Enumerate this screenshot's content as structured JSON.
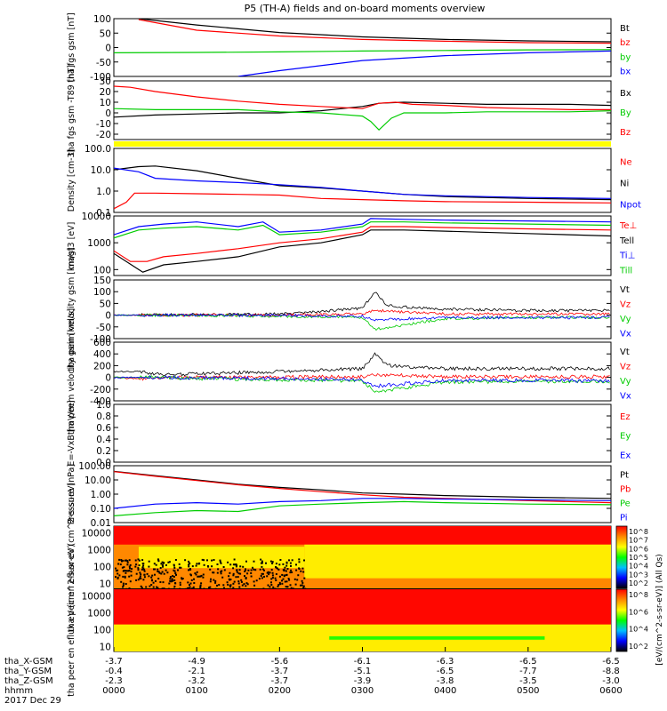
{
  "title": "P5 (TH-A) fields and on-board moments overview",
  "date": "2017 Dec 29",
  "x_axis": {
    "row_labels": [
      "tha_X-GSM",
      "tha_Y-GSM",
      "tha_Z-GSM",
      "hhmm"
    ],
    "tick_hours": [
      0,
      1,
      2,
      3,
      4,
      5,
      6
    ],
    "hhmm": [
      "0000",
      "0100",
      "0200",
      "0300",
      "0400",
      "0500",
      "0600"
    ],
    "x_gsm": [
      "-3.7",
      "-4.9",
      "-5.6",
      "-6.1",
      "-6.3",
      "-6.5",
      "-6.5"
    ],
    "y_gsm": [
      "-0.4",
      "-2.1",
      "-3.7",
      "-5.1",
      "-6.5",
      "-7.7",
      "-8.8"
    ],
    "z_gsm": [
      "-2.3",
      "-3.2",
      "-3.7",
      "-3.9",
      "-3.8",
      "-3.5",
      "-3.0"
    ]
  },
  "colorbar": {
    "label": "[eV/(cm^2-s-sr-eV)] (All Qs)",
    "ticks_top": [
      "10^8",
      "10^7",
      "10^6",
      "10^5",
      "10^4",
      "10^3",
      "10^2"
    ],
    "ticks_bottom": [
      "10^8",
      "10^6",
      "10^4",
      "10^2"
    ],
    "colors": [
      "#ff0000",
      "#ff8800",
      "#ffff00",
      "#00ff00",
      "#00c0ff",
      "#0000ff",
      "#000000"
    ]
  },
  "chart_data": [
    {
      "type": "line",
      "id": "bfield",
      "ylabel": "tha fgs gsm [nT]",
      "ylim": [
        -100,
        100
      ],
      "scale": "linear",
      "ticks": [
        100,
        50,
        0,
        -50,
        -100
      ],
      "series": [
        {
          "name": "Bt",
          "color": "#000000",
          "x": [
            0.3,
            1,
            2,
            3,
            4,
            5,
            6
          ],
          "y": [
            100,
            78,
            52,
            37,
            28,
            23,
            20
          ]
        },
        {
          "name": "bz",
          "color": "#ff0000",
          "x": [
            0.3,
            1,
            2,
            3,
            4,
            5,
            6
          ],
          "y": [
            97,
            60,
            40,
            28,
            22,
            17,
            15
          ]
        },
        {
          "name": "by",
          "color": "#00cc00",
          "x": [
            0,
            1,
            2,
            3,
            4,
            5,
            6
          ],
          "y": [
            -18,
            -17,
            -15,
            -12,
            -10,
            -8,
            -7
          ]
        },
        {
          "name": "bx",
          "color": "#0000ff",
          "x": [
            1.5,
            2,
            3,
            4,
            5,
            6
          ],
          "y": [
            -100,
            -80,
            -45,
            -28,
            -18,
            -12
          ]
        }
      ]
    },
    {
      "type": "line",
      "id": "dbfield",
      "ylabel": "tha fgs gsm -T89 [nT]",
      "ylim": [
        -25,
        30
      ],
      "scale": "linear",
      "ticks": [
        30,
        20,
        10,
        0,
        -10,
        -20
      ],
      "series": [
        {
          "name": "Bx",
          "color": "#000000",
          "x": [
            0,
            0.5,
            1,
            1.5,
            2,
            2.5,
            3,
            3.2,
            3.5,
            4,
            4.5,
            5,
            5.5,
            6
          ],
          "y": [
            -4,
            -2,
            -1,
            0,
            0,
            2,
            6,
            9,
            10,
            9,
            8,
            8,
            8,
            7
          ]
        },
        {
          "name": "By",
          "color": "#00cc00",
          "x": [
            0,
            0.5,
            1,
            1.5,
            2,
            2.5,
            3,
            3.1,
            3.2,
            3.35,
            3.5,
            4,
            4.5,
            5,
            5.5,
            6
          ],
          "y": [
            4,
            3,
            3,
            3,
            1,
            0,
            -3,
            -8,
            -16,
            -5,
            0,
            0,
            1,
            1,
            1,
            2
          ]
        },
        {
          "name": "Bz",
          "color": "#ff0000",
          "x": [
            0,
            0.2,
            0.5,
            1,
            1.5,
            2,
            2.5,
            3,
            3.2,
            3.4,
            3.6,
            4,
            4.5,
            5,
            5.5,
            6
          ],
          "y": [
            25,
            24,
            20,
            15,
            11,
            8,
            6,
            4,
            9,
            10,
            8,
            7,
            5,
            4,
            3,
            3
          ]
        }
      ]
    },
    {
      "type": "line",
      "id": "density",
      "ylabel": "Density [cm-3]",
      "ylim": [
        0.1,
        100
      ],
      "scale": "log",
      "ticks": [
        "100.0",
        "10.0",
        "1.0",
        "0.1"
      ],
      "tick_values": [
        100,
        10,
        1,
        0.1
      ],
      "series": [
        {
          "name": "Ne",
          "color": "#ff0000",
          "x": [
            0,
            0.15,
            0.25,
            0.5,
            1,
            1.5,
            2,
            2.5,
            3,
            3.5,
            4,
            5,
            6
          ],
          "y": [
            0.15,
            0.3,
            0.8,
            0.8,
            0.75,
            0.7,
            0.65,
            0.45,
            0.4,
            0.35,
            0.32,
            0.3,
            0.28
          ]
        },
        {
          "name": "Ni",
          "color": "#000000",
          "x": [
            0,
            0.3,
            0.5,
            1,
            1.5,
            2,
            2.5,
            3,
            3.5,
            4,
            5,
            6
          ],
          "y": [
            10,
            14,
            15,
            9,
            4,
            1.8,
            1.4,
            1.0,
            0.7,
            0.55,
            0.45,
            0.4
          ]
        },
        {
          "name": "Npot",
          "color": "#0000ff",
          "x": [
            0,
            0.3,
            0.5,
            1,
            1.5,
            2,
            2.5,
            3,
            3.5,
            4,
            5,
            6
          ],
          "y": [
            12,
            8,
            4,
            3,
            2.5,
            2,
            1.5,
            1.0,
            0.7,
            0.6,
            0.5,
            0.45
          ]
        }
      ]
    },
    {
      "type": "line",
      "id": "temperature",
      "ylabel": "magt3 [eV]",
      "ylim": [
        60,
        10000
      ],
      "scale": "log",
      "ticks": [
        "10000",
        "1000",
        "100"
      ],
      "tick_values": [
        10000,
        1000,
        100
      ],
      "series": [
        {
          "name": "Te⊥",
          "color": "#ff0000",
          "x": [
            0,
            0.2,
            0.4,
            0.6,
            1,
            1.5,
            2,
            2.5,
            3,
            3.1,
            3.5,
            4,
            5,
            6
          ],
          "y": [
            500,
            200,
            200,
            300,
            400,
            600,
            1000,
            1400,
            2500,
            4000,
            4000,
            3700,
            3300,
            3000
          ]
        },
        {
          "name": "Tell",
          "color": "#000000",
          "x": [
            0,
            0.3,
            0.35,
            0.6,
            1,
            1.5,
            2,
            2.5,
            3,
            3.1,
            3.5,
            4,
            5,
            6
          ],
          "y": [
            400,
            100,
            80,
            150,
            200,
            300,
            700,
            1000,
            2000,
            3000,
            3000,
            2700,
            2200,
            1800
          ]
        },
        {
          "name": "Ti⊥",
          "color": "#0000ff",
          "x": [
            0,
            0.3,
            0.6,
            1,
            1.5,
            1.8,
            2,
            2.5,
            3,
            3.1,
            3.5,
            4,
            5,
            6
          ],
          "y": [
            2000,
            4000,
            5000,
            6000,
            4000,
            6000,
            2500,
            3000,
            5000,
            8000,
            7500,
            7000,
            6500,
            6000
          ]
        },
        {
          "name": "Till",
          "color": "#00cc00",
          "x": [
            0,
            0.3,
            0.6,
            1,
            1.5,
            1.8,
            2,
            2.5,
            3,
            3.1,
            3.5,
            4,
            5,
            6
          ],
          "y": [
            1500,
            3000,
            3500,
            4000,
            3000,
            4500,
            2000,
            2500,
            4000,
            6000,
            6000,
            5500,
            5000,
            4500
          ]
        }
      ]
    },
    {
      "type": "line",
      "id": "vi",
      "ylabel": "tha peim velocity gsm [km/s]",
      "ylim": [
        -100,
        150
      ],
      "scale": "linear",
      "ticks": [
        150,
        100,
        50,
        0,
        -50,
        -100
      ],
      "series": [
        {
          "name": "Vt",
          "color": "#000000",
          "x": [
            0,
            1,
            2,
            2.5,
            3,
            3.15,
            3.3,
            4,
            5,
            6
          ],
          "y": [
            0,
            2,
            5,
            15,
            30,
            100,
            40,
            25,
            20,
            20
          ]
        },
        {
          "name": "Vz",
          "color": "#ff0000",
          "x": [
            0,
            1,
            2,
            3,
            3.15,
            4,
            5,
            6
          ],
          "y": [
            0,
            0,
            0,
            5,
            20,
            5,
            5,
            5
          ]
        },
        {
          "name": "Vy",
          "color": "#00cc00",
          "x": [
            0,
            1,
            2,
            3,
            3.15,
            4,
            5,
            6
          ],
          "y": [
            0,
            0,
            -5,
            -10,
            -60,
            -15,
            -10,
            -10
          ]
        },
        {
          "name": "Vx",
          "color": "#0000ff",
          "x": [
            0,
            1,
            2,
            3,
            3.15,
            4,
            5,
            6
          ],
          "y": [
            0,
            0,
            0,
            -5,
            -20,
            -10,
            -10,
            -10
          ]
        }
      ]
    },
    {
      "type": "line",
      "id": "ve",
      "ylabel": "tha peem velocity gsm [km/s]",
      "ylim": [
        -400,
        600
      ],
      "scale": "linear",
      "ticks": [
        600,
        400,
        200,
        0,
        -200,
        -400
      ],
      "series": [
        {
          "name": "Vt",
          "color": "#000000",
          "x": [
            0,
            0.3,
            0.5,
            1,
            2,
            3,
            3.15,
            3.3,
            4,
            5,
            6
          ],
          "y": [
            100,
            100,
            50,
            60,
            100,
            150,
            400,
            200,
            150,
            150,
            150
          ]
        },
        {
          "name": "Vz",
          "color": "#ff0000",
          "x": [
            0,
            0.3,
            0.5,
            1,
            2,
            3,
            3.15,
            4,
            5,
            6
          ],
          "y": [
            0,
            -30,
            0,
            0,
            5,
            10,
            50,
            10,
            10,
            10
          ]
        },
        {
          "name": "Vy",
          "color": "#00cc00",
          "x": [
            0,
            0.5,
            1,
            2,
            3,
            3.15,
            4,
            5,
            6
          ],
          "y": [
            0,
            0,
            -20,
            -40,
            -60,
            -250,
            -80,
            -70,
            -70
          ]
        },
        {
          "name": "Vx",
          "color": "#0000ff",
          "x": [
            0,
            0.5,
            1,
            2,
            3,
            3.15,
            4,
            5,
            6
          ],
          "y": [
            0,
            0,
            -10,
            -20,
            -40,
            -150,
            -50,
            -50,
            -60
          ]
        }
      ]
    },
    {
      "type": "line",
      "id": "efield",
      "ylabel": "E=-VxB [mV/m]",
      "ylim": [
        0,
        1
      ],
      "scale": "linear",
      "ticks": [
        "1.0",
        "0.8",
        "0.6",
        "0.4",
        "0.2",
        "0.0"
      ],
      "tick_values": [
        1,
        0.8,
        0.6,
        0.4,
        0.2,
        0
      ],
      "legend": [
        {
          "name": "Ez",
          "color": "#ff0000"
        },
        {
          "name": "Ey",
          "color": "#00cc00"
        },
        {
          "name": "Ex",
          "color": "#0000ff"
        }
      ],
      "series": []
    },
    {
      "type": "line",
      "id": "pressure",
      "ylabel": "Pressure [nPa]",
      "ylim": [
        0.01,
        100
      ],
      "scale": "log",
      "ticks": [
        "100.00",
        "10.00",
        "1.00",
        "0.10",
        "0.01"
      ],
      "tick_values": [
        100,
        10,
        1,
        0.1,
        0.01
      ],
      "series": [
        {
          "name": "Pt",
          "color": "#000000",
          "x": [
            0,
            0.5,
            1,
            1.5,
            2,
            2.5,
            3,
            3.5,
            4,
            5,
            6
          ],
          "y": [
            40,
            20,
            10,
            5,
            3,
            2,
            1.2,
            1.0,
            0.8,
            0.6,
            0.5
          ]
        },
        {
          "name": "Pb",
          "color": "#ff0000",
          "x": [
            0,
            0.5,
            1,
            1.5,
            2,
            2.5,
            3,
            3.5,
            4,
            5,
            6
          ],
          "y": [
            38,
            18,
            9,
            4.5,
            2.5,
            1.5,
            0.9,
            0.6,
            0.5,
            0.35,
            0.25
          ]
        },
        {
          "name": "Pe",
          "color": "#00cc00",
          "x": [
            0,
            0.5,
            1,
            1.5,
            2,
            2.5,
            3,
            3.5,
            4,
            5,
            6
          ],
          "y": [
            0.03,
            0.05,
            0.07,
            0.06,
            0.15,
            0.2,
            0.25,
            0.3,
            0.25,
            0.2,
            0.18
          ]
        },
        {
          "name": "Pi",
          "color": "#0000ff",
          "x": [
            0,
            0.5,
            1,
            1.5,
            2,
            2.5,
            3,
            3.5,
            4,
            5,
            6
          ],
          "y": [
            0.1,
            0.2,
            0.25,
            0.2,
            0.3,
            0.35,
            0.5,
            0.5,
            0.45,
            0.4,
            0.35
          ]
        }
      ]
    },
    {
      "type": "heatmap",
      "id": "ion_spectrogram",
      "ylabel": "tha peir en eflux eV (cm^2-s-sr-eV)",
      "ylim": [
        5,
        25000
      ],
      "scale": "log",
      "ticks": [
        "10000",
        "1000",
        "100",
        "10"
      ],
      "tick_values": [
        10000,
        1000,
        100,
        10
      ],
      "description_bands": [
        {
          "x": [
            0,
            6
          ],
          "y": [
            2000,
            25000
          ],
          "level": "high"
        },
        {
          "x": [
            0.3,
            2.3
          ],
          "y": [
            80,
            1500
          ],
          "level": "mid"
        },
        {
          "x": [
            2.3,
            6
          ],
          "y": [
            20,
            2000
          ],
          "level": "mid"
        },
        {
          "x": [
            0,
            2.3
          ],
          "y": [
            5,
            300
          ],
          "level": "noise"
        }
      ]
    },
    {
      "type": "heatmap",
      "id": "electron_spectrogram",
      "ylabel": "tha peer en eflux eV (cm^2-s-sr-eV)",
      "ylim": [
        5,
        25000
      ],
      "scale": "log",
      "ticks": [
        "10000",
        "1000",
        "100",
        "10"
      ],
      "tick_values": [
        10000,
        1000,
        100,
        10
      ],
      "description_bands": [
        {
          "x": [
            0,
            6
          ],
          "y": [
            200,
            25000
          ],
          "level": "high"
        },
        {
          "x": [
            0,
            6
          ],
          "y": [
            5,
            200
          ],
          "level": "mid"
        },
        {
          "x": [
            2.6,
            5.2
          ],
          "y": [
            25,
            40
          ],
          "level": "low"
        }
      ]
    }
  ]
}
